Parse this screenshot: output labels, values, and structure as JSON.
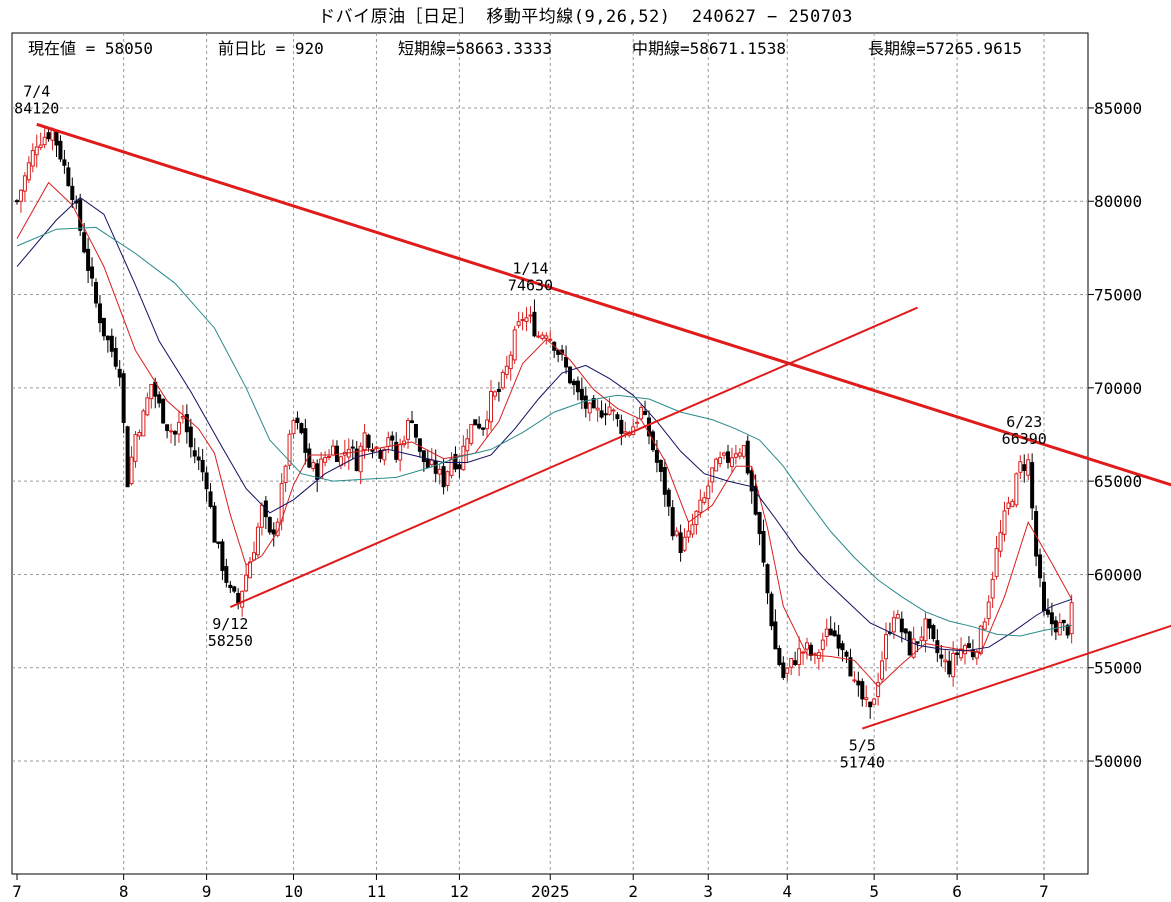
{
  "header": {
    "title": "ドバイ原油［日足］ 移動平均線(9,26,52)  240627 − 250703",
    "current": "現在値 = 58050",
    "change": "前日比 = 920",
    "short_ma": "短期線=58663.3333",
    "mid_ma": "中期線=58671.1538",
    "long_ma": "長期線=57265.9615"
  },
  "colors": {
    "frame": "#000000",
    "grid": "#9a9a9a",
    "up_candle": "#d81e1e",
    "down_candle": "#000000",
    "short_ma": "#d81e1e",
    "mid_ma": "#101060",
    "long_ma": "#2a8a8a",
    "trendline": "#e01b1b"
  },
  "chart_data": {
    "type": "candlestick",
    "title": "ドバイ原油［日足］ 移動平均線(9,26,52)  240627 − 250703",
    "x_tick_labels": [
      "7",
      "8",
      "9",
      "10",
      "11",
      "12",
      "2025",
      "2",
      "3",
      "4",
      "5",
      "6",
      "7"
    ],
    "y_tick_labels": [
      "50000",
      "55000",
      "60000",
      "65000",
      "70000",
      "75000",
      "80000",
      "85000"
    ],
    "ylim": [
      44000,
      88500
    ],
    "grid": true,
    "legend": "none",
    "series_names": [
      "短期線",
      "中期線",
      "長期線"
    ],
    "close_path": [
      [
        0,
        80000
      ],
      [
        5,
        83200
      ],
      [
        7,
        83500
      ],
      [
        9,
        83800
      ],
      [
        11,
        82500
      ],
      [
        14,
        80500
      ],
      [
        16,
        78500
      ],
      [
        18,
        76500
      ],
      [
        20,
        74500
      ],
      [
        22,
        73000
      ],
      [
        24,
        72000
      ],
      [
        26,
        71000
      ],
      [
        28,
        65000
      ],
      [
        30,
        67500
      ],
      [
        32,
        68500
      ],
      [
        34,
        70200
      ],
      [
        36,
        69000
      ],
      [
        38,
        68000
      ],
      [
        40,
        67500
      ],
      [
        42,
        68500
      ],
      [
        44,
        66800
      ],
      [
        46,
        66000
      ],
      [
        48,
        65000
      ],
      [
        50,
        62000
      ],
      [
        52,
        60500
      ],
      [
        54,
        59000
      ],
      [
        56,
        58500
      ],
      [
        58,
        60000
      ],
      [
        60,
        61500
      ],
      [
        62,
        63500
      ],
      [
        64,
        62000
      ],
      [
        66,
        63000
      ],
      [
        68,
        66000
      ],
      [
        70,
        68200
      ],
      [
        72,
        67500
      ],
      [
        74,
        65800
      ],
      [
        76,
        65500
      ],
      [
        78,
        66300
      ],
      [
        80,
        66800
      ],
      [
        82,
        66200
      ],
      [
        84,
        67000
      ],
      [
        86,
        66000
      ],
      [
        88,
        67500
      ],
      [
        90,
        67000
      ],
      [
        92,
        66600
      ],
      [
        94,
        67500
      ],
      [
        96,
        66200
      ],
      [
        98,
        67500
      ],
      [
        100,
        68500
      ],
      [
        102,
        66400
      ],
      [
        104,
        65800
      ],
      [
        106,
        65600
      ],
      [
        108,
        65000
      ],
      [
        110,
        66300
      ],
      [
        112,
        65900
      ],
      [
        114,
        67600
      ],
      [
        116,
        68200
      ],
      [
        118,
        68000
      ],
      [
        120,
        69400
      ],
      [
        122,
        69800
      ],
      [
        124,
        71000
      ],
      [
        126,
        72700
      ],
      [
        128,
        73800
      ],
      [
        130,
        73600
      ],
      [
        132,
        72800
      ],
      [
        134,
        73100
      ],
      [
        136,
        72400
      ],
      [
        138,
        71500
      ],
      [
        140,
        70500
      ],
      [
        142,
        69600
      ],
      [
        144,
        69000
      ],
      [
        146,
        68500
      ],
      [
        148,
        68800
      ],
      [
        150,
        69000
      ],
      [
        152,
        68200
      ],
      [
        154,
        67600
      ],
      [
        156,
        68000
      ],
      [
        158,
        68800
      ],
      [
        160,
        67500
      ],
      [
        162,
        66000
      ],
      [
        164,
        64500
      ],
      [
        166,
        62500
      ],
      [
        168,
        61500
      ],
      [
        170,
        62000
      ],
      [
        172,
        63200
      ],
      [
        174,
        64000
      ],
      [
        176,
        65500
      ],
      [
        178,
        66000
      ],
      [
        180,
        66200
      ],
      [
        182,
        66700
      ],
      [
        184,
        66800
      ],
      [
        186,
        64500
      ],
      [
        188,
        62000
      ],
      [
        190,
        59000
      ],
      [
        192,
        56000
      ],
      [
        194,
        54500
      ],
      [
        196,
        55200
      ],
      [
        198,
        55800
      ],
      [
        200,
        56000
      ],
      [
        202,
        55400
      ],
      [
        204,
        56500
      ],
      [
        206,
        57000
      ],
      [
        208,
        56500
      ],
      [
        210,
        56000
      ],
      [
        212,
        54000
      ],
      [
        214,
        53300
      ],
      [
        216,
        52600
      ],
      [
        218,
        54500
      ],
      [
        220,
        56500
      ],
      [
        222,
        58000
      ],
      [
        224,
        57000
      ],
      [
        226,
        56000
      ],
      [
        228,
        56500
      ],
      [
        230,
        57200
      ],
      [
        232,
        56200
      ],
      [
        234,
        55400
      ],
      [
        236,
        55000
      ],
      [
        238,
        55800
      ],
      [
        240,
        56200
      ],
      [
        242,
        55800
      ],
      [
        244,
        56800
      ],
      [
        246,
        58800
      ],
      [
        248,
        61200
      ],
      [
        250,
        63000
      ],
      [
        252,
        64300
      ],
      [
        254,
        65800
      ],
      [
        256,
        66000
      ],
      [
        258,
        61000
      ],
      [
        260,
        57800
      ],
      [
        262,
        57400
      ],
      [
        264,
        57200
      ],
      [
        266,
        57100
      ],
      [
        267,
        58050
      ]
    ],
    "ma_paths": {
      "短期線": [
        [
          0,
          78000
        ],
        [
          8,
          81000
        ],
        [
          14,
          79800
        ],
        [
          22,
          76500
        ],
        [
          30,
          72000
        ],
        [
          38,
          69300
        ],
        [
          46,
          67800
        ],
        [
          50,
          66500
        ],
        [
          54,
          63200
        ],
        [
          58,
          60500
        ],
        [
          62,
          61000
        ],
        [
          66,
          62300
        ],
        [
          70,
          64800
        ],
        [
          74,
          66400
        ],
        [
          80,
          66400
        ],
        [
          90,
          66700
        ],
        [
          100,
          67100
        ],
        [
          108,
          66200
        ],
        [
          116,
          66500
        ],
        [
          122,
          68200
        ],
        [
          128,
          71300
        ],
        [
          134,
          72600
        ],
        [
          140,
          71500
        ],
        [
          146,
          69900
        ],
        [
          152,
          68900
        ],
        [
          158,
          68300
        ],
        [
          164,
          66100
        ],
        [
          170,
          62800
        ],
        [
          176,
          63700
        ],
        [
          182,
          65800
        ],
        [
          186,
          65800
        ],
        [
          190,
          62500
        ],
        [
          194,
          58300
        ],
        [
          200,
          55700
        ],
        [
          206,
          55600
        ],
        [
          212,
          55400
        ],
        [
          218,
          54000
        ],
        [
          224,
          55200
        ],
        [
          230,
          56300
        ],
        [
          238,
          56000
        ],
        [
          244,
          55800
        ],
        [
          250,
          58800
        ],
        [
          256,
          62800
        ],
        [
          262,
          60600
        ],
        [
          267,
          58660
        ]
      ],
      "中期線": [
        [
          0,
          76500
        ],
        [
          10,
          79000
        ],
        [
          16,
          80200
        ],
        [
          22,
          79300
        ],
        [
          30,
          75500
        ],
        [
          36,
          72500
        ],
        [
          44,
          69800
        ],
        [
          52,
          66800
        ],
        [
          58,
          64600
        ],
        [
          64,
          63300
        ],
        [
          70,
          64000
        ],
        [
          78,
          65400
        ],
        [
          86,
          66300
        ],
        [
          94,
          66700
        ],
        [
          102,
          66300
        ],
        [
          108,
          66000
        ],
        [
          114,
          66000
        ],
        [
          120,
          66400
        ],
        [
          126,
          67800
        ],
        [
          132,
          69400
        ],
        [
          138,
          70800
        ],
        [
          144,
          71200
        ],
        [
          150,
          70500
        ],
        [
          156,
          69600
        ],
        [
          162,
          68200
        ],
        [
          168,
          66600
        ],
        [
          174,
          65400
        ],
        [
          180,
          65000
        ],
        [
          186,
          64700
        ],
        [
          192,
          63000
        ],
        [
          198,
          61200
        ],
        [
          204,
          59800
        ],
        [
          210,
          58600
        ],
        [
          216,
          57400
        ],
        [
          222,
          56800
        ],
        [
          228,
          56200
        ],
        [
          234,
          56000
        ],
        [
          240,
          55900
        ],
        [
          246,
          56100
        ],
        [
          252,
          56900
        ],
        [
          258,
          57800
        ],
        [
          262,
          58300
        ],
        [
          267,
          58670
        ]
      ],
      "長期線": [
        [
          0,
          77600
        ],
        [
          10,
          78500
        ],
        [
          20,
          78600
        ],
        [
          30,
          77200
        ],
        [
          40,
          75600
        ],
        [
          50,
          73200
        ],
        [
          58,
          70000
        ],
        [
          64,
          67200
        ],
        [
          72,
          65400
        ],
        [
          80,
          65000
        ],
        [
          88,
          65100
        ],
        [
          96,
          65200
        ],
        [
          104,
          65700
        ],
        [
          112,
          66300
        ],
        [
          120,
          66700
        ],
        [
          128,
          67600
        ],
        [
          136,
          68700
        ],
        [
          144,
          69300
        ],
        [
          152,
          69600
        ],
        [
          160,
          69400
        ],
        [
          168,
          68700
        ],
        [
          176,
          68300
        ],
        [
          182,
          67800
        ],
        [
          188,
          67200
        ],
        [
          194,
          65800
        ],
        [
          200,
          64000
        ],
        [
          206,
          62300
        ],
        [
          212,
          60900
        ],
        [
          218,
          59700
        ],
        [
          224,
          58800
        ],
        [
          230,
          58000
        ],
        [
          236,
          57500
        ],
        [
          242,
          57200
        ],
        [
          248,
          56800
        ],
        [
          254,
          56700
        ],
        [
          260,
          57000
        ],
        [
          267,
          57270
        ]
      ]
    },
    "trendlines": [
      {
        "from": [
          5,
          84120
        ],
        "to": [
          310,
          63600
        ]
      },
      {
        "from": [
          54,
          58250
        ],
        "to": [
          228,
          74300
        ]
      },
      {
        "from": [
          214,
          51740
        ],
        "to": [
          310,
          58500
        ]
      }
    ],
    "annotations": [
      {
        "date": "7/4",
        "value": "84120",
        "x": 5,
        "y": 84120,
        "pos": "above"
      },
      {
        "date": "9/12",
        "value": "58250",
        "x": 54,
        "y": 58250,
        "pos": "below"
      },
      {
        "date": "1/14",
        "value": "74630",
        "x": 130,
        "y": 74630,
        "pos": "above"
      },
      {
        "date": "5/5",
        "value": "51740",
        "x": 214,
        "y": 51740,
        "pos": "below"
      },
      {
        "date": "6/23",
        "value": "66390",
        "x": 255,
        "y": 66390,
        "pos": "above"
      }
    ]
  }
}
